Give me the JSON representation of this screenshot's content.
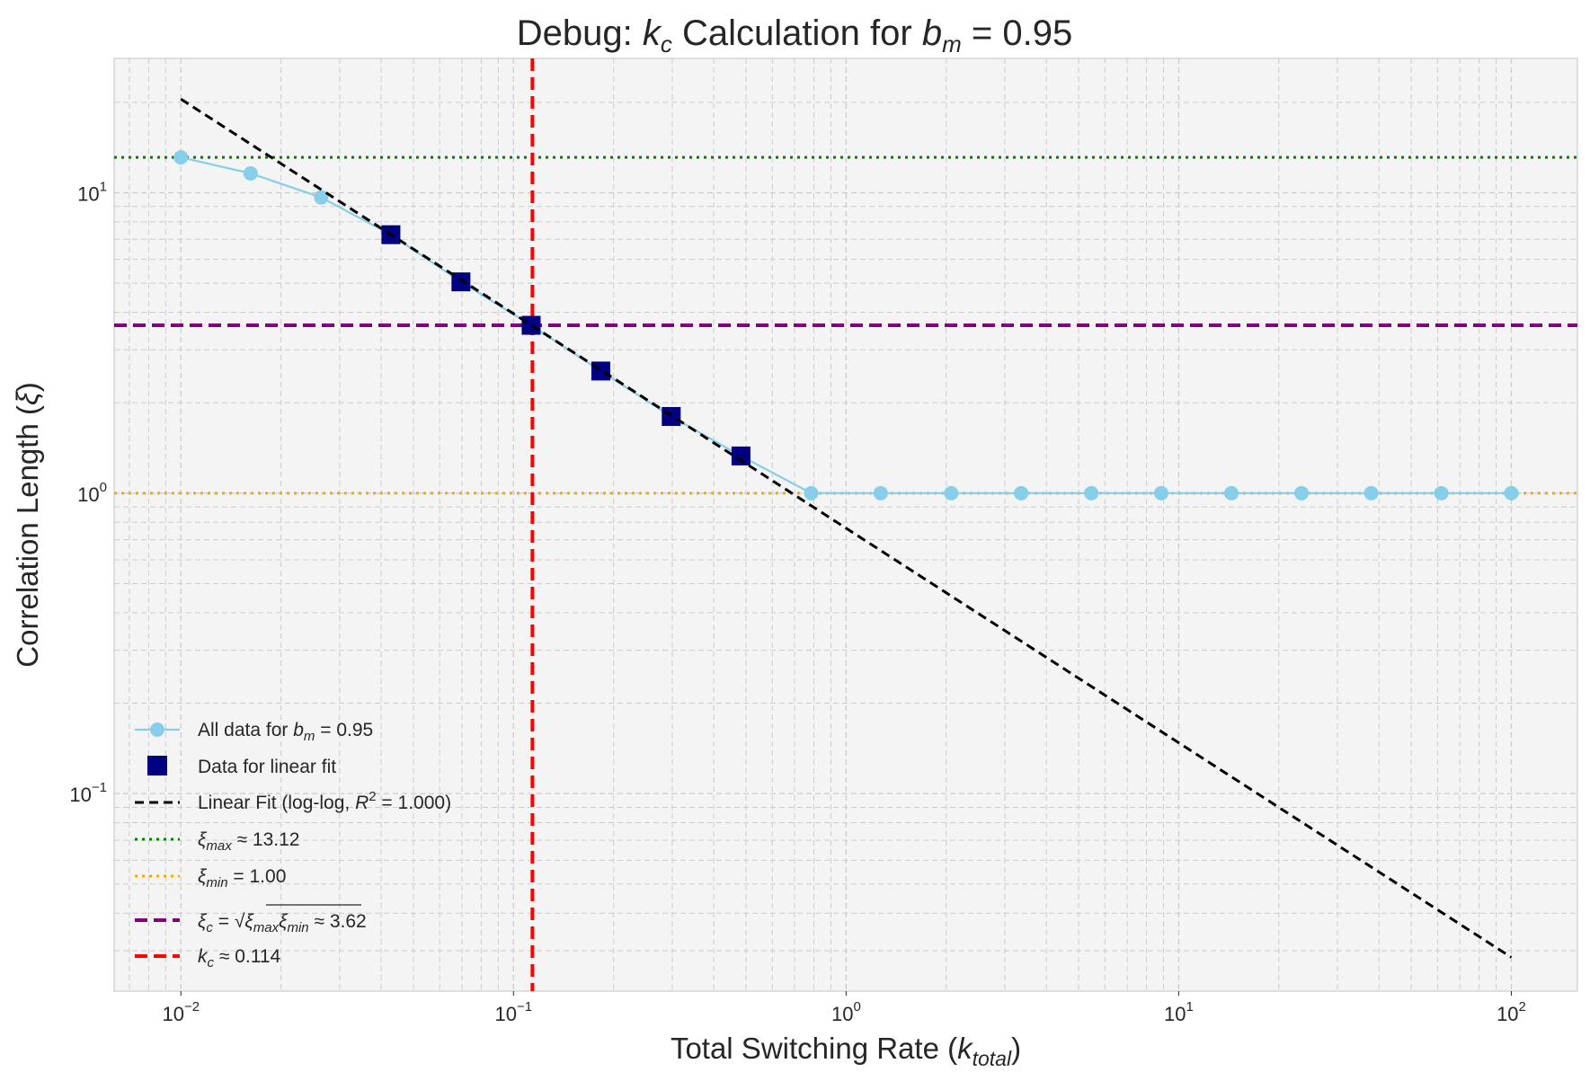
{
  "chart_data": {
    "type": "line",
    "title": {
      "prefix": "Debug: ",
      "k": "k",
      "k_sub": "c",
      "middle": " Calculation for ",
      "b": "b",
      "b_sub": "m",
      "suffix": " = 0.95"
    },
    "xlabel": {
      "text": "Total Switching Rate (",
      "sym": "k",
      "sub": "total",
      "close": ")"
    },
    "ylabel": {
      "text": "Correlation Length (",
      "sym": "ξ",
      "close": ")"
    },
    "x_scale": "log",
    "y_scale": "log",
    "xlim": [
      0.0063,
      158
    ],
    "ylim": [
      0.022,
      28
    ],
    "grid": true,
    "legend_position": "lower-left",
    "x_ticks": [
      {
        "value": 0.01,
        "base": "10",
        "exp": "−2"
      },
      {
        "value": 0.1,
        "base": "10",
        "exp": "−1"
      },
      {
        "value": 1,
        "base": "10",
        "exp": "0"
      },
      {
        "value": 10,
        "base": "10",
        "exp": "1"
      },
      {
        "value": 100,
        "base": "10",
        "exp": "2"
      }
    ],
    "y_ticks": [
      {
        "value": 0.1,
        "base": "10",
        "exp": "−1"
      },
      {
        "value": 1,
        "base": "10",
        "exp": "0"
      },
      {
        "value": 10,
        "base": "10",
        "exp": "1"
      }
    ],
    "series": [
      {
        "name": "All data for b_m = 0.95",
        "kind": "line-marker",
        "color": "#87ceeb",
        "x": [
          0.01,
          0.0162,
          0.0264,
          0.0428,
          0.0695,
          0.113,
          0.183,
          0.298,
          0.483,
          0.785,
          1.27,
          2.07,
          3.36,
          5.46,
          8.86,
          14.4,
          23.4,
          37.9,
          61.6,
          100
        ],
        "y": [
          13.12,
          11.6,
          9.65,
          7.25,
          5.05,
          3.62,
          2.55,
          1.8,
          1.33,
          1.0,
          1.0,
          1.0,
          1.0,
          1.0,
          1.0,
          1.0,
          1.0,
          1.0,
          1.0,
          1.0
        ]
      },
      {
        "name": "Data for linear fit",
        "kind": "square-marker",
        "color": "#000080",
        "x": [
          0.0428,
          0.0695,
          0.113,
          0.183,
          0.298,
          0.483
        ],
        "y": [
          7.25,
          5.05,
          3.62,
          2.55,
          1.8,
          1.33
        ]
      },
      {
        "name": "Linear Fit (log-log, R^2 = 1.000)",
        "kind": "dashed-line",
        "color": "#000000",
        "x": [
          0.01,
          100
        ],
        "y": [
          20.5,
          0.0285
        ]
      }
    ],
    "reference_lines": [
      {
        "name": "xi_max ≈ 13.12",
        "orientation": "horizontal",
        "value": 13.12,
        "color": "#008000",
        "style": "dotted"
      },
      {
        "name": "xi_min = 1.00",
        "orientation": "horizontal",
        "value": 1.0,
        "color": "#ffa500",
        "style": "dotted"
      },
      {
        "name": "xi_c = sqrt(xi_max xi_min) ≈ 3.62",
        "orientation": "horizontal",
        "value": 3.62,
        "color": "#800080",
        "style": "dashed"
      },
      {
        "name": "k_c ≈ 0.114",
        "orientation": "vertical",
        "value": 0.114,
        "color": "#ff0000",
        "style": "dashed"
      }
    ],
    "legend": {
      "all_data": {
        "pre": "All data for ",
        "sym": "b",
        "sub": "m",
        "post": " = 0.95"
      },
      "fit_data": {
        "text": "Data for linear fit"
      },
      "fit_line": {
        "pre": "Linear Fit (log-log, ",
        "sym": "R",
        "sup": "2",
        "post": " = 1.000)"
      },
      "xi_max": {
        "sym": "ξ",
        "sub": "max",
        "post": " ≈ 13.12"
      },
      "xi_min": {
        "sym": "ξ",
        "sub": "min",
        "post": " = 1.00"
      },
      "xi_c": {
        "sym": "ξ",
        "sub": "c",
        "eq": " = ",
        "root_sym1": "ξ",
        "root_sub1": "max",
        "root_sym2": "ξ",
        "root_sub2": "min",
        "post": " ≈ 3.62"
      },
      "k_c": {
        "sym": "k",
        "sub": "c",
        "post": " ≈ 0.114"
      }
    }
  }
}
